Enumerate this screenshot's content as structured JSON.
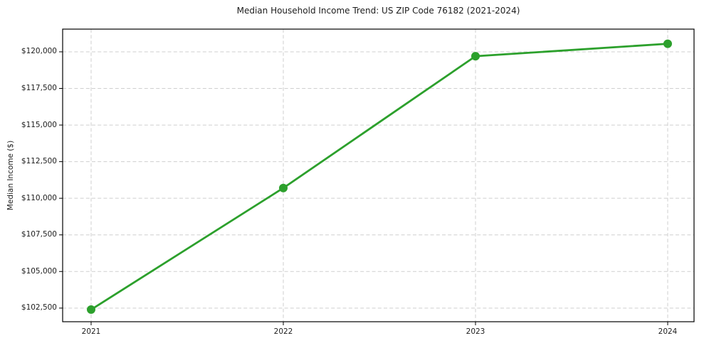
{
  "chart_data": {
    "type": "line",
    "title": "Median Household Income Trend: US ZIP Code 76182 (2021-2024)",
    "xlabel": "",
    "ylabel": "Median Income ($)",
    "categories": [
      2021,
      2022,
      2023,
      2024
    ],
    "xtick_labels": [
      "2021",
      "2022",
      "2023",
      "2024"
    ],
    "values": [
      102400,
      110700,
      119700,
      120550
    ],
    "ytick_values": [
      102500,
      105000,
      107500,
      110000,
      112500,
      115000,
      117500,
      120000
    ],
    "ytick_labels": [
      "$102,500",
      "$105,000",
      "$107,500",
      "$110,000",
      "$112,500",
      "$115,000",
      "$117,500",
      "$120,000"
    ],
    "ylim": [
      101570,
      121550
    ],
    "grid": true,
    "grid_style": "dashed",
    "legend_position": "none",
    "marker": "circle",
    "colors": {
      "line": "#2ca02c",
      "marker": "#2ca02c",
      "grid": "#cfcfcf",
      "axis": "#000000",
      "text": "#1c1c1c",
      "background": "#ffffff"
    }
  }
}
